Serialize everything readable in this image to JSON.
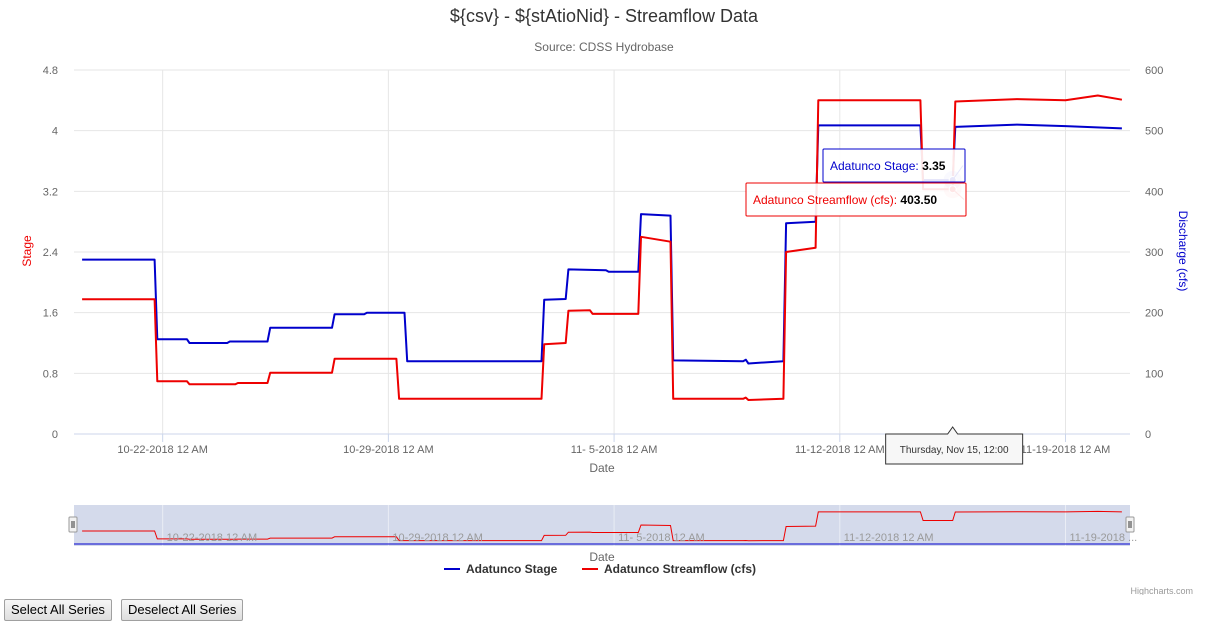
{
  "chart_data": {
    "type": "line",
    "title": "${csv} - ${stAtioNid} - Streamflow Data",
    "subtitle": "Source: CDSS Hydrobase",
    "xlabel": "Date",
    "ylabel_left": "Stage",
    "ylabel_right": "Discharge (cfs)",
    "ylim_left": [
      0,
      4.8
    ],
    "ylim_right": [
      0,
      600
    ],
    "xlim": [
      "2018-10-19 06:00",
      "2018-11-21 00:00"
    ],
    "x_tick_labels": [
      "10-22-2018 12 AM",
      "10-29-2018 12 AM",
      "11- 5-2018 12 AM",
      "11-12-2018 12 AM",
      "11-19-2018 12 AM"
    ],
    "x_ticks": [
      "2018-10-22 00:00",
      "2018-10-29 00:00",
      "2018-11-05 00:00",
      "2018-11-12 00:00",
      "2018-11-19 00:00"
    ],
    "y_tick_labels_left": [
      "0",
      "0.8",
      "1.6",
      "2.4",
      "3.2",
      "4",
      "4.8"
    ],
    "y_tick_labels_right": [
      "0",
      "100",
      "200",
      "300",
      "400",
      "500",
      "600"
    ],
    "grid": true,
    "legend_position": "bottom-center",
    "series": [
      {
        "name": "Adatunco Stage",
        "axis": "left",
        "color": "#0000cc",
        "points": [
          [
            "2018-10-19 12:00",
            2.3
          ],
          [
            "2018-10-21 18:00",
            2.3
          ],
          [
            "2018-10-21 20:00",
            1.25
          ],
          [
            "2018-10-22 18:00",
            1.25
          ],
          [
            "2018-10-22 20:00",
            1.2
          ],
          [
            "2018-10-24 00:00",
            1.2
          ],
          [
            "2018-10-24 02:00",
            1.22
          ],
          [
            "2018-10-25 06:00",
            1.22
          ],
          [
            "2018-10-25 08:00",
            1.4
          ],
          [
            "2018-10-27 06:00",
            1.4
          ],
          [
            "2018-10-27 08:00",
            1.58
          ],
          [
            "2018-10-28 06:00",
            1.58
          ],
          [
            "2018-10-28 08:00",
            1.6
          ],
          [
            "2018-10-29 12:00",
            1.6
          ],
          [
            "2018-10-29 14:00",
            0.96
          ],
          [
            "2018-11-02 18:00",
            0.96
          ],
          [
            "2018-11-02 20:00",
            1.77
          ],
          [
            "2018-11-03 12:00",
            1.78
          ],
          [
            "2018-11-03 14:00",
            2.17
          ],
          [
            "2018-11-04 18:00",
            2.16
          ],
          [
            "2018-11-04 20:00",
            2.14
          ],
          [
            "2018-11-05 18:00",
            2.14
          ],
          [
            "2018-11-05 20:00",
            2.9
          ],
          [
            "2018-11-06 18:00",
            2.88
          ],
          [
            "2018-11-06 20:00",
            0.97
          ],
          [
            "2018-11-09 00:00",
            0.96
          ],
          [
            "2018-11-09 02:00",
            0.98
          ],
          [
            "2018-11-09 04:00",
            0.93
          ],
          [
            "2018-11-10 06:00",
            0.96
          ],
          [
            "2018-11-10 08:00",
            2.78
          ],
          [
            "2018-11-11 06:00",
            2.8
          ],
          [
            "2018-11-11 08:00",
            4.07
          ],
          [
            "2018-11-14 12:00",
            4.07
          ],
          [
            "2018-11-14 14:00",
            3.35
          ],
          [
            "2018-11-15 12:00",
            3.35
          ],
          [
            "2018-11-15 14:00",
            4.05
          ],
          [
            "2018-11-17 12:00",
            4.08
          ],
          [
            "2018-11-19 00:00",
            4.06
          ],
          [
            "2018-11-20 18:00",
            4.03
          ]
        ]
      },
      {
        "name": "Adatunco Streamflow (cfs)",
        "axis": "right",
        "color": "#ee0000",
        "points": [
          [
            "2018-10-19 12:00",
            222
          ],
          [
            "2018-10-21 18:00",
            222
          ],
          [
            "2018-10-21 20:00",
            87
          ],
          [
            "2018-10-22 18:00",
            87
          ],
          [
            "2018-10-22 20:00",
            82
          ],
          [
            "2018-10-24 06:00",
            82
          ],
          [
            "2018-10-24 08:00",
            84
          ],
          [
            "2018-10-25 06:00",
            84
          ],
          [
            "2018-10-25 08:00",
            101
          ],
          [
            "2018-10-27 06:00",
            101
          ],
          [
            "2018-10-27 08:00",
            124
          ],
          [
            "2018-10-29 06:00",
            124
          ],
          [
            "2018-10-29 08:00",
            58
          ],
          [
            "2018-11-02 18:00",
            58
          ],
          [
            "2018-11-02 20:00",
            148
          ],
          [
            "2018-11-03 12:00",
            150
          ],
          [
            "2018-11-03 14:00",
            203
          ],
          [
            "2018-11-04 06:00",
            204
          ],
          [
            "2018-11-04 08:00",
            198
          ],
          [
            "2018-11-05 18:00",
            198
          ],
          [
            "2018-11-05 20:00",
            325
          ],
          [
            "2018-11-06 18:00",
            317
          ],
          [
            "2018-11-06 20:00",
            58
          ],
          [
            "2018-11-09 00:00",
            58
          ],
          [
            "2018-11-09 02:00",
            60
          ],
          [
            "2018-11-09 04:00",
            56
          ],
          [
            "2018-11-10 06:00",
            58
          ],
          [
            "2018-11-10 08:00",
            300
          ],
          [
            "2018-11-11 06:00",
            307
          ],
          [
            "2018-11-11 08:00",
            550
          ],
          [
            "2018-11-14 12:00",
            550
          ],
          [
            "2018-11-14 14:00",
            403.5
          ],
          [
            "2018-11-15 12:00",
            403.5
          ],
          [
            "2018-11-15 14:00",
            548
          ],
          [
            "2018-11-17 12:00",
            552
          ],
          [
            "2018-11-19 00:00",
            550
          ],
          [
            "2018-11-20 00:00",
            558
          ],
          [
            "2018-11-20 18:00",
            551
          ]
        ]
      }
    ],
    "tooltip": {
      "header": "Thursday, Nov 15, 12:00",
      "x": "2018-11-15 12:00",
      "items": [
        {
          "series": "Adatunco Stage",
          "label": "Adatunco Stage: ",
          "value": "3.35",
          "y": 3.35,
          "axis": "left",
          "color": "#0000cc"
        },
        {
          "series": "Adatunco Streamflow (cfs)",
          "label": "Adatunco Streamflow (cfs): ",
          "value": "403.50",
          "y": 403.5,
          "axis": "right",
          "color": "#ee0000"
        }
      ]
    },
    "navigator": {
      "x_tick_labels": [
        "10-22-2018 12 AM",
        "10-29-2018 12 AM",
        "11- 5-2018 12 AM",
        "11-12-2018 12 AM",
        "11-19-2018 ..."
      ],
      "xlabel": "Date"
    },
    "credits": "Highcharts.com"
  },
  "controls": {
    "select_all": "Select All Series",
    "deselect_all": "Deselect All Series"
  }
}
